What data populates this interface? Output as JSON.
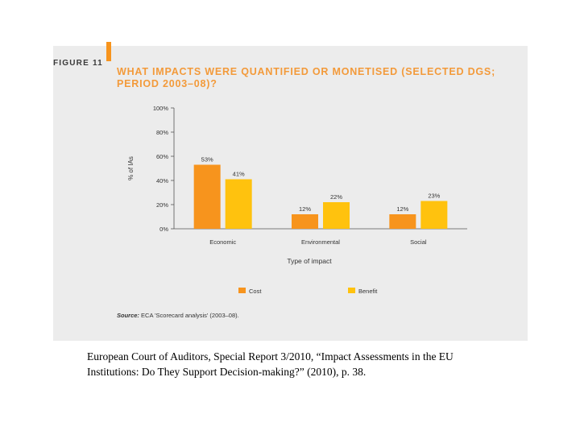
{
  "figure": {
    "label": "FIGURE 11",
    "title_line1": "WHAT IMPACTS WERE QUANTIFIED OR MONETISED (SELECTED DGS;",
    "title_line2": "PERIOD 2003–08)?",
    "source_label": "Source:",
    "source_text": "ECA 'Scorecard analysis' (2003–08).",
    "accent_color": "#f7941d",
    "title_color": "#f39a3a",
    "panel_color": "#ececec"
  },
  "caption": {
    "line1": "European Court of Auditors, Special Report 3/2010, “Impact Assessments in the EU",
    "line2": "Institutions: Do They Support Decision-making?” (2010), p. 38."
  },
  "chart_data": {
    "type": "bar",
    "title": "WHAT IMPACTS WERE QUANTIFIED OR MONETISED (SELECTED DGS; PERIOD 2003–08)?",
    "xlabel": "Type of impact",
    "ylabel": "% of IAs",
    "ylim": [
      0,
      100
    ],
    "yticks": [
      "0%",
      "20%",
      "40%",
      "60%",
      "80%",
      "100%"
    ],
    "ytick_values": [
      0,
      20,
      40,
      60,
      80,
      100
    ],
    "categories": [
      "Economic",
      "Environmental",
      "Social"
    ],
    "series": [
      {
        "name": "Cost",
        "color": "#f7941d",
        "values": [
          53,
          12,
          12
        ],
        "labels": [
          "53%",
          "12%",
          "12%"
        ]
      },
      {
        "name": "Benefit",
        "color": "#ffc20e",
        "values": [
          41,
          22,
          23
        ],
        "labels": [
          "41%",
          "22%",
          "23%"
        ]
      }
    ],
    "legend": "bottom-center",
    "grid": false
  }
}
